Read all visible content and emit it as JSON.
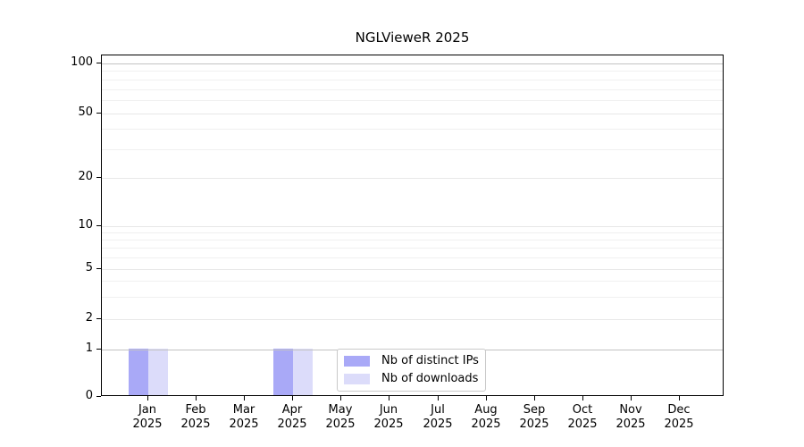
{
  "chart_data": {
    "type": "bar",
    "title": "NGLVieweR 2025",
    "categories": [
      "Jan",
      "Feb",
      "Mar",
      "Apr",
      "May",
      "Jun",
      "Jul",
      "Aug",
      "Sep",
      "Oct",
      "Nov",
      "Dec"
    ],
    "x_year_label": "2025",
    "series": [
      {
        "name": "Nb of distinct IPs",
        "color": "#a9a9f7",
        "values": [
          1,
          0,
          0,
          1,
          0,
          0,
          0,
          0,
          0,
          0,
          0,
          0
        ]
      },
      {
        "name": "Nb of downloads",
        "color": "#dcdcfa",
        "values": [
          1,
          0,
          0,
          1,
          0,
          0,
          0,
          0,
          0,
          0,
          0,
          0
        ]
      }
    ],
    "y_ticks": [
      0,
      1,
      2,
      5,
      10,
      20,
      50,
      100
    ],
    "y_minor_gridlines": [
      3,
      4,
      6,
      7,
      8,
      9,
      30,
      40,
      60,
      70,
      80,
      90
    ],
    "ylim": [
      0,
      100
    ],
    "xlabel": "",
    "ylabel": "",
    "scale": "symlog (linear 0-1, log above 1)",
    "grid": "horizontal only, major + log minor",
    "legend_position": "bottom-center inside plot",
    "colors": {
      "axis": "#000000",
      "gridline_minor": "#f0f0f0",
      "gridline_major": "#e8e8e8",
      "gridline_emphasis": "#c2c2c2",
      "legend_border": "#c9c9c9",
      "background": "#ffffff"
    }
  }
}
